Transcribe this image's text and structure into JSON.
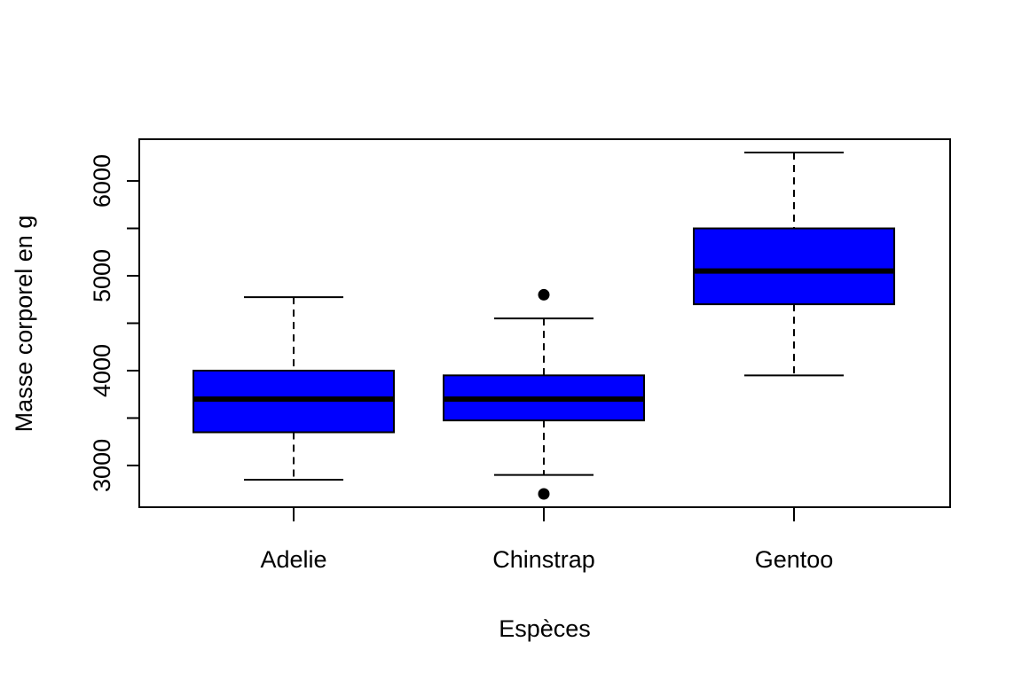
{
  "chart_data": {
    "type": "boxplot",
    "title": "",
    "xlabel": "Espèces",
    "ylabel": "Masse corporel en g",
    "categories": [
      "Adelie",
      "Chinstrap",
      "Gentoo"
    ],
    "boxes": [
      {
        "category": "Adelie",
        "whisker_low": 2850,
        "q1": 3350,
        "median": 3700,
        "q3": 4000,
        "whisker_high": 4775,
        "outliers": []
      },
      {
        "category": "Chinstrap",
        "whisker_low": 2900,
        "q1": 3475,
        "median": 3700,
        "q3": 3950,
        "whisker_high": 4550,
        "outliers": [
          2700,
          4800
        ]
      },
      {
        "category": "Gentoo",
        "whisker_low": 3950,
        "q1": 4700,
        "median": 5050,
        "q3": 5500,
        "whisker_high": 6300,
        "outliers": []
      }
    ],
    "yticks": [
      3000,
      4000,
      5000,
      6000
    ],
    "yminor_ticks": [
      3500,
      4500,
      5500
    ],
    "ylim": [
      2560,
      6440
    ],
    "box_color": "#0000ff",
    "grid": false,
    "legend": "none"
  }
}
